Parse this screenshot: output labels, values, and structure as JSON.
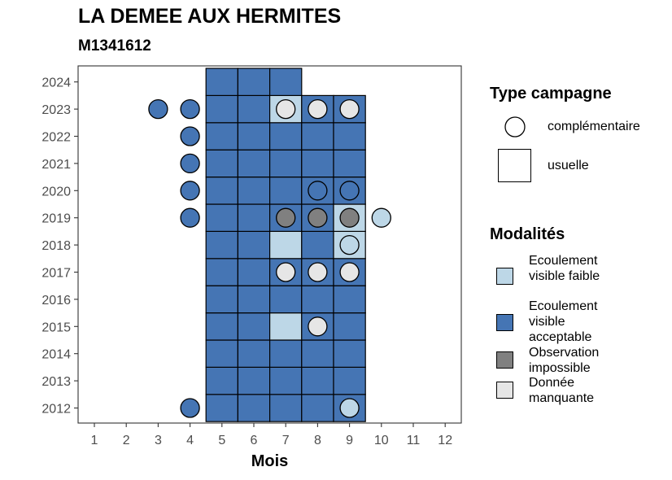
{
  "title": "LA DEMEE AUX HERMITES",
  "subtitle": "M1341612",
  "chart_data": {
    "type": "heatmap",
    "xlabel": "Mois",
    "ylabel": "",
    "x_ticks": [
      "1",
      "2",
      "3",
      "4",
      "5",
      "6",
      "7",
      "8",
      "9",
      "10",
      "11",
      "12"
    ],
    "y_ticks": [
      "2012",
      "2013",
      "2014",
      "2015",
      "2016",
      "2017",
      "2018",
      "2019",
      "2020",
      "2021",
      "2022",
      "2023",
      "2024"
    ],
    "grid": false,
    "legend_placement": "right",
    "legend_campaign": {
      "title": "Type campagne",
      "items": [
        {
          "shape": "circle",
          "label": "complémentaire"
        },
        {
          "shape": "square",
          "label": "usuelle"
        }
      ]
    },
    "legend_modalites": {
      "title": "Modalités",
      "items": [
        {
          "key": "faible",
          "label": "Ecoulement visible faible",
          "color": "#bdd7e7"
        },
        {
          "key": "acceptable",
          "label": "Ecoulement visible acceptable",
          "color": "#4575b4"
        },
        {
          "key": "impossible",
          "label": "Observation impossible",
          "color": "#808080"
        },
        {
          "key": "manquante",
          "label": "Donnée manquante",
          "color": "#e6e6e6"
        }
      ]
    },
    "usual": [
      {
        "year": 2012,
        "months": {
          "5": "acceptable",
          "6": "acceptable",
          "7": "acceptable",
          "8": "acceptable",
          "9": "acceptable"
        }
      },
      {
        "year": 2013,
        "months": {
          "5": "acceptable",
          "6": "acceptable",
          "7": "acceptable",
          "8": "acceptable",
          "9": "acceptable"
        }
      },
      {
        "year": 2014,
        "months": {
          "5": "acceptable",
          "6": "acceptable",
          "7": "acceptable",
          "8": "acceptable",
          "9": "acceptable"
        }
      },
      {
        "year": 2015,
        "months": {
          "5": "acceptable",
          "6": "acceptable",
          "7": "faible",
          "8": "acceptable",
          "9": "acceptable"
        }
      },
      {
        "year": 2016,
        "months": {
          "5": "acceptable",
          "6": "acceptable",
          "7": "acceptable",
          "8": "acceptable",
          "9": "acceptable"
        }
      },
      {
        "year": 2017,
        "months": {
          "5": "acceptable",
          "6": "acceptable",
          "7": "acceptable",
          "8": "acceptable",
          "9": "acceptable"
        }
      },
      {
        "year": 2018,
        "months": {
          "5": "acceptable",
          "6": "acceptable",
          "7": "faible",
          "8": "acceptable",
          "9": "faible"
        }
      },
      {
        "year": 2019,
        "months": {
          "5": "acceptable",
          "6": "acceptable",
          "7": "acceptable",
          "8": "acceptable",
          "9": "faible"
        }
      },
      {
        "year": 2020,
        "months": {
          "5": "acceptable",
          "6": "acceptable",
          "7": "acceptable",
          "8": "acceptable",
          "9": "acceptable"
        }
      },
      {
        "year": 2021,
        "months": {
          "5": "acceptable",
          "6": "acceptable",
          "7": "acceptable",
          "8": "acceptable",
          "9": "acceptable"
        }
      },
      {
        "year": 2022,
        "months": {
          "5": "acceptable",
          "6": "acceptable",
          "7": "acceptable",
          "8": "acceptable",
          "9": "acceptable"
        }
      },
      {
        "year": 2023,
        "months": {
          "5": "acceptable",
          "6": "acceptable",
          "7": "faible",
          "8": "acceptable",
          "9": "acceptable"
        }
      },
      {
        "year": 2024,
        "months": {
          "5": "acceptable",
          "6": "acceptable",
          "7": "acceptable"
        }
      }
    ],
    "complementary": [
      {
        "year": 2012,
        "month": 4,
        "status": "acceptable"
      },
      {
        "year": 2012,
        "month": 9,
        "status": "faible"
      },
      {
        "year": 2015,
        "month": 8,
        "status": "manquante"
      },
      {
        "year": 2017,
        "month": 7,
        "status": "manquante"
      },
      {
        "year": 2017,
        "month": 8,
        "status": "manquante"
      },
      {
        "year": 2017,
        "month": 9,
        "status": "manquante"
      },
      {
        "year": 2018,
        "month": 9,
        "status": "faible"
      },
      {
        "year": 2019,
        "month": 4,
        "status": "acceptable"
      },
      {
        "year": 2019,
        "month": 7,
        "status": "impossible"
      },
      {
        "year": 2019,
        "month": 8,
        "status": "impossible"
      },
      {
        "year": 2019,
        "month": 9,
        "status": "impossible"
      },
      {
        "year": 2019,
        "month": 10,
        "status": "faible"
      },
      {
        "year": 2020,
        "month": 4,
        "status": "acceptable"
      },
      {
        "year": 2020,
        "month": 8,
        "status": "acceptable"
      },
      {
        "year": 2020,
        "month": 9,
        "status": "acceptable"
      },
      {
        "year": 2021,
        "month": 4,
        "status": "acceptable"
      },
      {
        "year": 2022,
        "month": 4,
        "status": "acceptable"
      },
      {
        "year": 2023,
        "month": 3,
        "status": "acceptable"
      },
      {
        "year": 2023,
        "month": 4,
        "status": "acceptable"
      },
      {
        "year": 2023,
        "month": 7,
        "status": "manquante"
      },
      {
        "year": 2023,
        "month": 8,
        "status": "manquante"
      },
      {
        "year": 2023,
        "month": 9,
        "status": "manquante"
      }
    ]
  }
}
